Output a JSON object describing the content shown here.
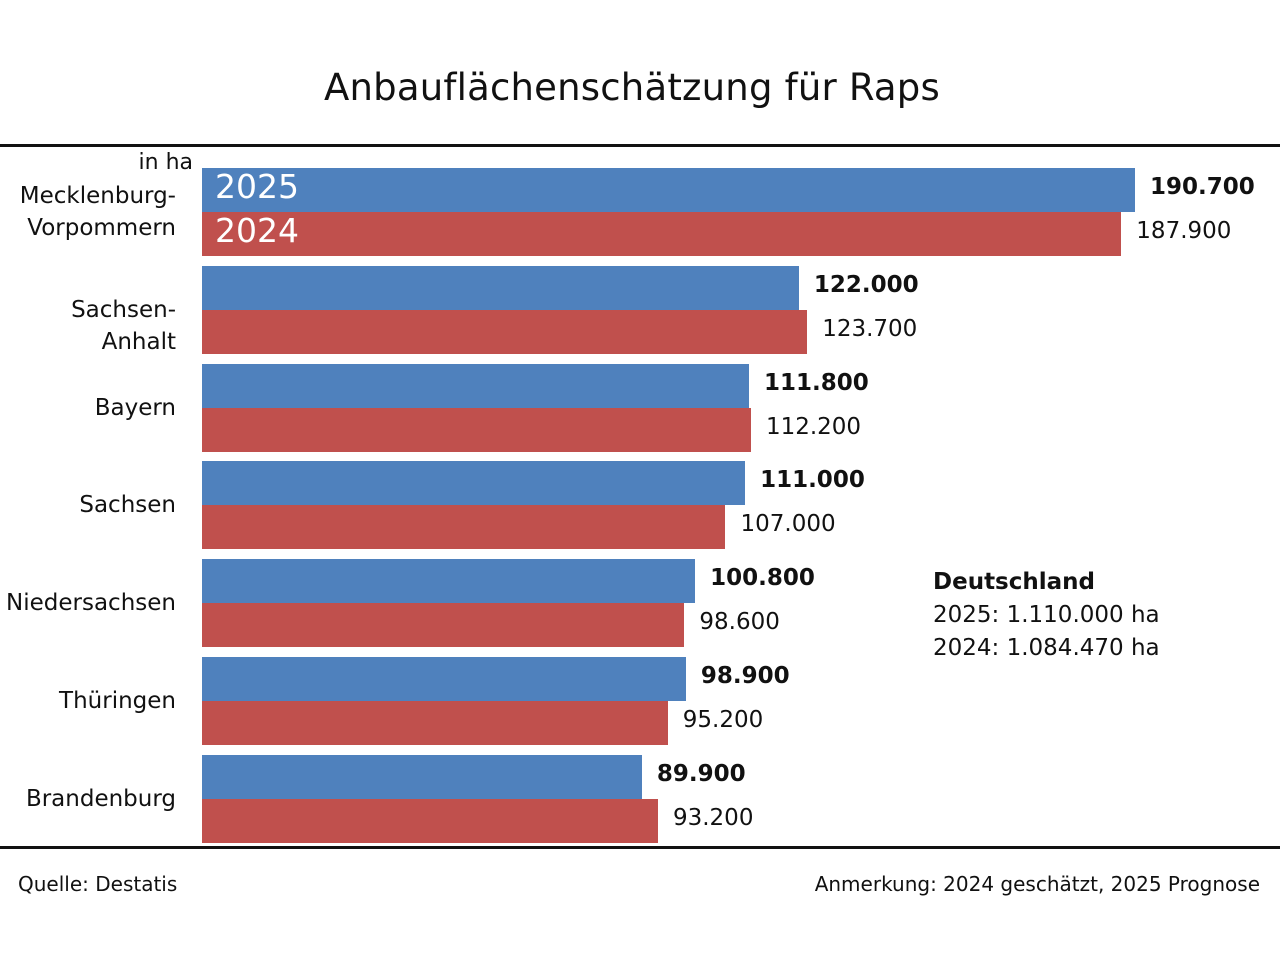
{
  "chart_data": {
    "type": "bar",
    "orientation": "horizontal",
    "title": "Anbauflächenschätzung für Raps",
    "unit_label": "in ha",
    "xlabel": "",
    "ylabel": "",
    "xlim": [
      0,
      190700
    ],
    "grid": false,
    "categories": [
      "Mecklenburg-\nVorpommern",
      "Sachsen-Anhalt",
      "Bayern",
      "Sachsen",
      "Niedersachsen",
      "Thüringen",
      "Brandenburg"
    ],
    "series": [
      {
        "name": "2025",
        "color": "#4f81bd",
        "values": [
          190700,
          122000,
          111800,
          111000,
          100800,
          98900,
          89900
        ],
        "labels": [
          "190.700",
          "122.000",
          "111.800",
          "111.000",
          "100.800",
          "98.900",
          "89.900"
        ]
      },
      {
        "name": "2024",
        "color": "#c0504d",
        "values": [
          187900,
          123700,
          112200,
          107000,
          98600,
          95200,
          93200
        ],
        "labels": [
          "187.900",
          "123.700",
          "112.200",
          "107.000",
          "98.600",
          "95.200",
          "93.200"
        ]
      }
    ],
    "legend": {
      "placement": "inside-first-bars",
      "entries": [
        "2025",
        "2024"
      ]
    },
    "annotation": {
      "heading": "Deutschland",
      "lines": [
        "2025: 1.110.000 ha",
        "2024: 1.084.470 ha"
      ]
    },
    "source": "Quelle:  Destatis",
    "note": "Anmerkung: 2024 geschätzt, 2025 Prognose"
  }
}
